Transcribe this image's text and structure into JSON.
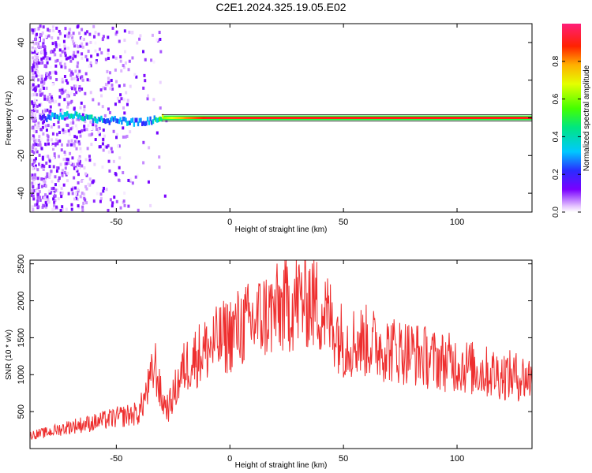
{
  "figure_title": "C2E1.2024.325.19.05.E02",
  "colors": {
    "trace": "#ee2e2e",
    "frame": "#000000"
  },
  "chart_data": [
    {
      "type": "heatmap",
      "title": "C2E1.2024.325.19.05.E02",
      "xlabel": "Height of straight line (km)",
      "ylabel": "Frequency (Hz)",
      "xlim": [
        -88,
        133
      ],
      "ylim": [
        -50,
        50
      ],
      "xticks": [
        -50,
        0,
        50,
        100
      ],
      "yticks": [
        -40,
        -20,
        0,
        20,
        40
      ],
      "x_tick_labels": [
        "-50",
        "0",
        "50",
        "100"
      ],
      "y_tick_labels": [
        "-40",
        "-20",
        "0",
        "20",
        "40"
      ],
      "description_points": {
        "ridge_x": [
          -82,
          -75,
          -70,
          -65,
          -60,
          -55,
          -50,
          -45,
          -40,
          -35,
          -30,
          -20,
          -10,
          0,
          50,
          100,
          133
        ],
        "ridge_y": [
          0,
          1,
          1.5,
          0.5,
          -0.5,
          -1.5,
          -1,
          -2,
          -2.5,
          -1.5,
          0,
          0,
          0,
          0,
          0,
          0,
          0
        ],
        "ridge_amplitude": [
          0.2,
          0.35,
          0.4,
          0.35,
          0.35,
          0.3,
          0.3,
          0.3,
          0.28,
          0.3,
          0.6,
          0.8,
          0.9,
          0.9,
          0.9,
          0.9,
          0.9
        ]
      },
      "colorbar": {
        "label": "Normalized spectral amplitude",
        "range": [
          0.0,
          1.0
        ],
        "ticks": [
          0.0,
          0.2,
          0.4,
          0.6,
          0.8
        ],
        "tick_labels": [
          "0.0",
          "0.2",
          "0.4",
          "0.6",
          "0.8"
        ]
      }
    },
    {
      "type": "line",
      "xlabel": "Height of straight line (km)",
      "ylabel": "SNR (10 * v/v)",
      "xlim": [
        -88,
        133
      ],
      "ylim": [
        0,
        2550
      ],
      "xticks": [
        -50,
        0,
        50,
        100
      ],
      "yticks": [
        500,
        1000,
        1500,
        2000,
        2500
      ],
      "x_tick_labels": [
        "-50",
        "0",
        "50",
        "100"
      ],
      "y_tick_labels": [
        "500",
        "1000",
        "1500",
        "2000",
        "2500"
      ],
      "x": [
        -88,
        -80,
        -70,
        -60,
        -50,
        -45,
        -40,
        -35,
        -33,
        -30,
        -27,
        -24,
        -20,
        -15,
        -10,
        -5,
        0,
        5,
        10,
        15,
        20,
        25,
        30,
        35,
        40,
        45,
        50,
        60,
        70,
        80,
        90,
        100,
        110,
        120,
        133
      ],
      "values": [
        180,
        220,
        300,
        350,
        420,
        450,
        480,
        900,
        1150,
        650,
        550,
        800,
        1100,
        1250,
        1350,
        1450,
        1550,
        1650,
        1700,
        1800,
        1850,
        1950,
        2000,
        2050,
        1900,
        1700,
        1450,
        1450,
        1350,
        1300,
        1200,
        1150,
        1050,
        1000,
        950
      ]
    }
  ]
}
